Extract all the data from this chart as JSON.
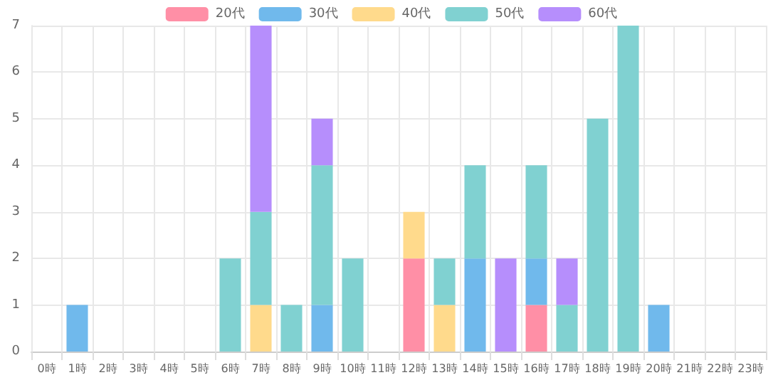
{
  "chart_data": {
    "type": "bar",
    "stacked": true,
    "categories": [
      "0時",
      "1時",
      "2時",
      "3時",
      "4時",
      "5時",
      "6時",
      "7時",
      "8時",
      "9時",
      "10時",
      "11時",
      "12時",
      "13時",
      "14時",
      "15時",
      "16時",
      "17時",
      "18時",
      "19時",
      "20時",
      "21時",
      "22時",
      "23時"
    ],
    "series": [
      {
        "name": "20代",
        "color": "#ff8fa6",
        "values": [
          0,
          0,
          0,
          0,
          0,
          0,
          0,
          0,
          0,
          0,
          0,
          0,
          2,
          0,
          0,
          0,
          1,
          0,
          0,
          0,
          0,
          0,
          0,
          0
        ]
      },
      {
        "name": "30代",
        "color": "#70b9ec",
        "values": [
          0,
          1,
          0,
          0,
          0,
          0,
          0,
          0,
          0,
          1,
          0,
          0,
          0,
          0,
          2,
          0,
          1,
          0,
          0,
          0,
          1,
          0,
          0,
          0
        ]
      },
      {
        "name": "40代",
        "color": "#ffda8c",
        "values": [
          0,
          0,
          0,
          0,
          0,
          0,
          0,
          1,
          0,
          0,
          0,
          0,
          1,
          1,
          0,
          0,
          0,
          0,
          0,
          0,
          0,
          0,
          0,
          0
        ]
      },
      {
        "name": "50代",
        "color": "#80d1d1",
        "values": [
          0,
          0,
          0,
          0,
          0,
          0,
          2,
          2,
          1,
          3,
          2,
          0,
          0,
          1,
          2,
          0,
          2,
          1,
          5,
          7,
          0,
          0,
          0,
          0
        ]
      },
      {
        "name": "60代",
        "color": "#b68efc",
        "values": [
          0,
          0,
          0,
          0,
          0,
          0,
          0,
          4,
          0,
          1,
          0,
          0,
          0,
          0,
          0,
          2,
          0,
          1,
          0,
          0,
          0,
          0,
          0,
          0
        ]
      }
    ],
    "ylim": [
      0,
      7
    ],
    "yticks": [
      0,
      1,
      2,
      3,
      4,
      5,
      6,
      7
    ],
    "grid": true,
    "legend": "top"
  }
}
